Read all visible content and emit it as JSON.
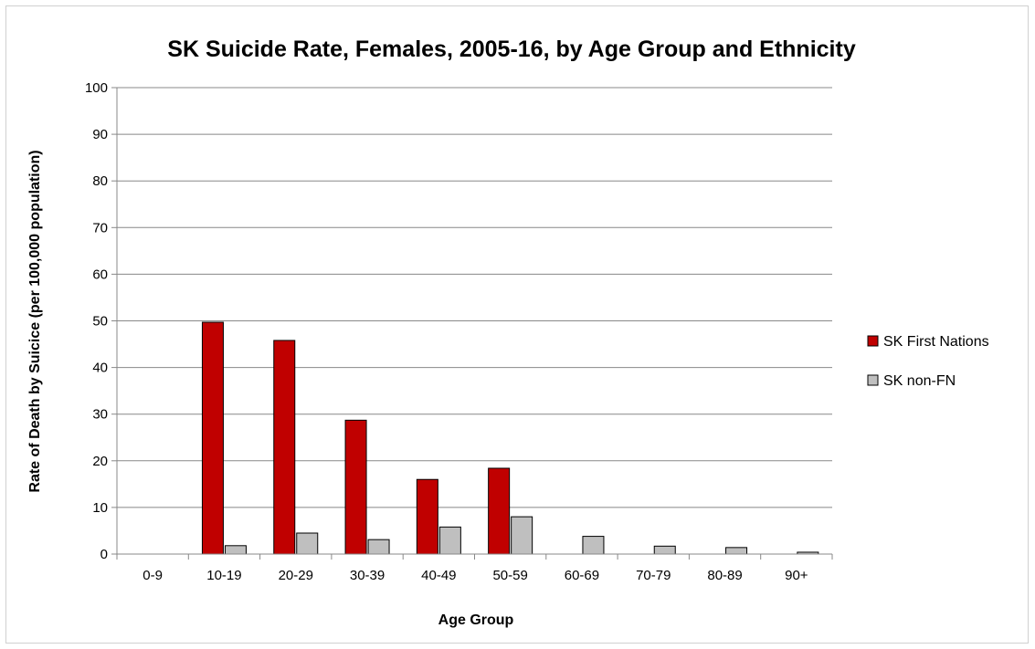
{
  "chart_data": {
    "type": "bar",
    "title": "SK Suicide Rate, Females, 2005-16, by Age Group and Ethnicity",
    "xlabel": "Age Group",
    "ylabel": "Rate of Death by Suicice (per 100,000 population)",
    "ylim": [
      0,
      100
    ],
    "yticks": [
      "0",
      "10",
      "20",
      "30",
      "40",
      "50",
      "60",
      "70",
      "80",
      "90",
      "100"
    ],
    "grid": true,
    "legend_position": "right",
    "categories": [
      "0-9",
      "10-19",
      "20-29",
      "30-39",
      "40-49",
      "50-59",
      "60-69",
      "70-79",
      "80-89",
      "90+"
    ],
    "series": [
      {
        "name": "SK First Nations",
        "color": "#c00000",
        "values": [
          0,
          49.7,
          45.8,
          28.7,
          16.0,
          18.4,
          0,
          0,
          0,
          0
        ]
      },
      {
        "name": "SK non-FN",
        "color": "#bfbfbf",
        "values": [
          0,
          1.8,
          4.5,
          3.1,
          5.8,
          8.0,
          3.8,
          1.7,
          1.4,
          0.4
        ]
      }
    ]
  }
}
